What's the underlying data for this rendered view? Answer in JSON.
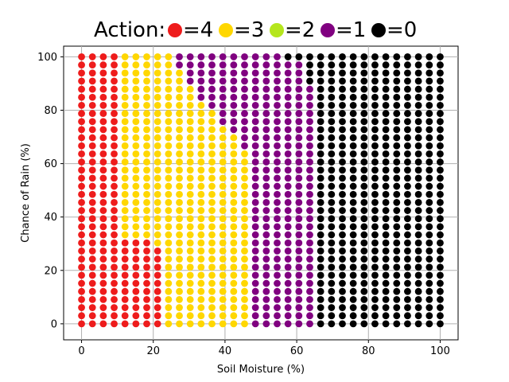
{
  "chart_data": {
    "type": "scatter",
    "title": "",
    "xlabel": "Soil Moisture (%)",
    "ylabel": "Chance of Rain (%)",
    "xlim": [
      -5,
      105
    ],
    "ylim": [
      -6,
      104
    ],
    "x_ticks": [
      0,
      20,
      40,
      60,
      80,
      100
    ],
    "y_ticks": [
      0,
      20,
      40,
      60,
      80,
      100
    ],
    "grid": true,
    "legend": {
      "placement": "top",
      "title": "Action:",
      "entries": [
        {
          "label": "=4",
          "color": "#ee1c1c"
        },
        {
          "label": "=3",
          "color": "#ffd700"
        },
        {
          "label": "=2",
          "color": "#b5e61d"
        },
        {
          "label": "=1",
          "color": "#800080"
        },
        {
          "label": "=0",
          "color": "#000000"
        }
      ]
    },
    "grid_step": {
      "x": 3.03,
      "y": 3.03
    },
    "points_per_axis": 34,
    "series": [
      {
        "name": "=4",
        "color": "#ee1c1c",
        "rule": "x < 10.6 or (x < 19.7 and y < 31) or (x < 22.7 and y < 28)"
      },
      {
        "name": "=3",
        "color": "#ffd700",
        "rule": "remaining points with x < 47.5, excluding the upper-right triangle boundary"
      },
      {
        "name": "=2",
        "color": "#b5e61d",
        "rule": "none"
      },
      {
        "name": "=1",
        "color": "#800080",
        "rule": "points between the yellow and black regions"
      },
      {
        "name": "=0",
        "color": "#000000",
        "rule": "x > 65 region and top strip above y=91 for x > 55"
      }
    ]
  }
}
